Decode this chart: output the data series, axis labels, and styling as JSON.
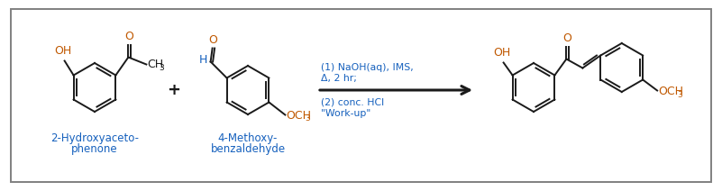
{
  "bg_color": "#ffffff",
  "border_color": "#808080",
  "OH_color": "#c05800",
  "O_color": "#c05800",
  "H_color": "#1560bd",
  "OCH3_color": "#c05800",
  "label_color": "#1560bd",
  "cond_color": "#1560bd",
  "black": "#1a1a1a",
  "label1_line1": "2-Hydroxyaceto-",
  "label1_line2": "phenone",
  "label2_line1": "4-Methoxy-",
  "label2_line2": "benzaldehyde",
  "cond1": "(1) NaOH(aq), IMS,",
  "cond2": "Δ, 2 hr;",
  "cond3": "(2) conc. HCl",
  "cond4": "\"Work-up\""
}
